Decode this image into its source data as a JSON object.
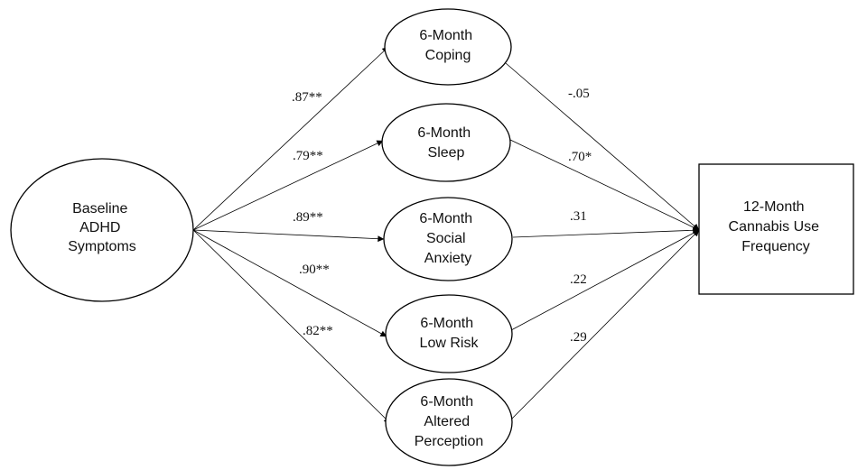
{
  "diagram": {
    "predictor": {
      "lines": [
        "Baseline",
        "ADHD",
        "Symptoms"
      ]
    },
    "mediators": [
      {
        "id": "coping",
        "lines": [
          "6-Month",
          "Coping"
        ]
      },
      {
        "id": "sleep",
        "lines": [
          "6-Month",
          "Sleep"
        ]
      },
      {
        "id": "social-anxiety",
        "lines": [
          "6-Month",
          "Social",
          "Anxiety"
        ]
      },
      {
        "id": "low-risk",
        "lines": [
          "6-Month",
          "Low Risk"
        ]
      },
      {
        "id": "altered-perception",
        "lines": [
          "6-Month",
          "Altered",
          "Perception"
        ]
      }
    ],
    "outcome": {
      "lines": [
        "12-Month",
        "Cannabis Use",
        "Frequency"
      ]
    },
    "a_paths": [
      ".87**",
      ".79**",
      ".89**",
      ".90**",
      ".82**"
    ],
    "b_paths": [
      "-.05",
      ".70*",
      ".31",
      ".22",
      ".29"
    ]
  }
}
